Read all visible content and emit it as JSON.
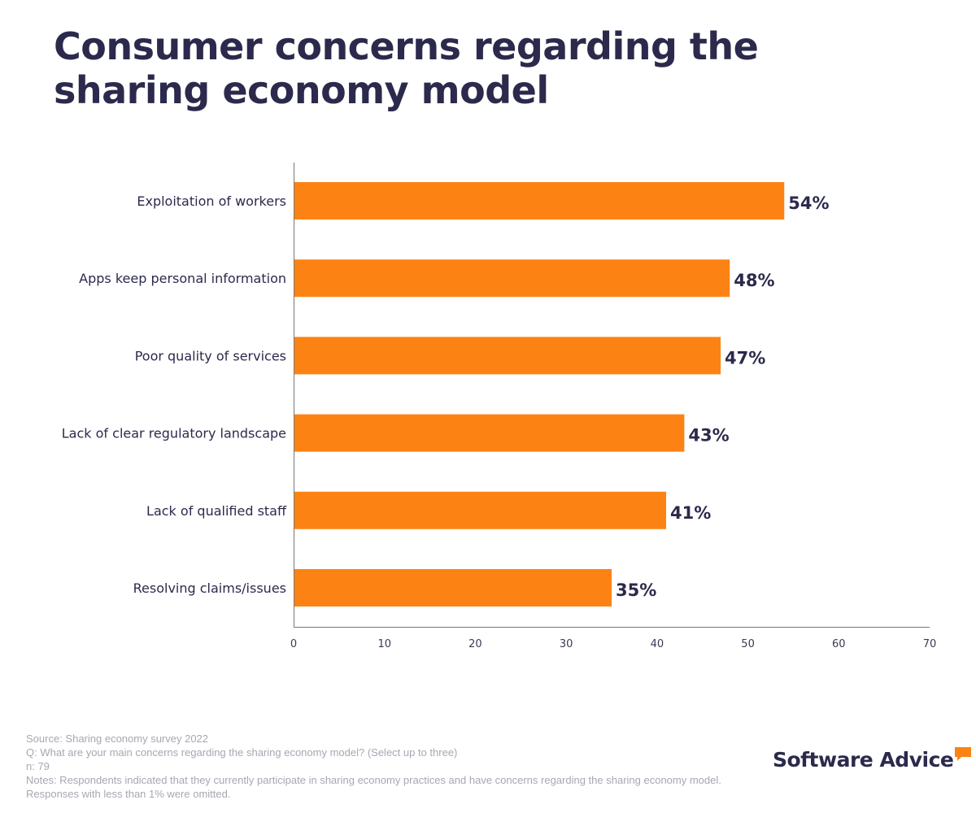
{
  "title": "Consumer concerns regarding the sharing economy model",
  "chart_data": {
    "type": "bar",
    "orientation": "horizontal",
    "categories": [
      "Exploitation of workers",
      "Apps keep personal information",
      "Poor quality of services",
      "Lack of clear regulatory landscape",
      "Lack of qualified staff",
      "Resolving claims/issues"
    ],
    "values": [
      54,
      48,
      47,
      43,
      41,
      35
    ],
    "value_labels": [
      "54%",
      "48%",
      "47%",
      "43%",
      "41%",
      "35%"
    ],
    "xlim": [
      0,
      70
    ],
    "xticks": [
      0,
      10,
      20,
      30,
      40,
      50,
      60,
      70
    ],
    "bar_color": "#fc8313",
    "grid": false
  },
  "footer": {
    "source": "Source: Sharing economy survey 2022",
    "question": "Q: What are your main concerns regarding the sharing economy model? (Select up to three)",
    "n": "n: 79",
    "notes": "Notes: Respondents indicated that they currently participate in sharing economy practices and have concerns regarding the sharing economy model. Responses with less than 1% were omitted."
  },
  "brand": {
    "name": "Software Advice",
    "icon": "speech-bubble-icon",
    "accent": "#fc8313",
    "text_color": "#2b2a4c"
  }
}
